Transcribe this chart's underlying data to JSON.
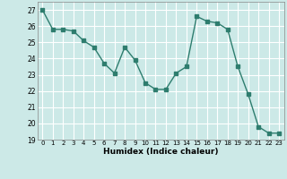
{
  "x": [
    0,
    1,
    2,
    3,
    4,
    5,
    6,
    7,
    8,
    9,
    10,
    11,
    12,
    13,
    14,
    15,
    16,
    17,
    18,
    19,
    20,
    21,
    22,
    23
  ],
  "y": [
    27,
    25.8,
    25.8,
    25.7,
    25.1,
    24.7,
    23.7,
    23.1,
    24.7,
    23.9,
    22.5,
    22.1,
    22.1,
    23.1,
    23.5,
    26.6,
    26.3,
    26.2,
    25.8,
    23.5,
    21.8,
    19.8,
    19.4,
    19.4
  ],
  "xlabel": "Humidex (Indice chaleur)",
  "ylim": [
    19,
    27.5
  ],
  "xlim": [
    -0.5,
    23.5
  ],
  "yticks": [
    19,
    20,
    21,
    22,
    23,
    24,
    25,
    26,
    27
  ],
  "xticks": [
    0,
    1,
    2,
    3,
    4,
    5,
    6,
    7,
    8,
    9,
    10,
    11,
    12,
    13,
    14,
    15,
    16,
    17,
    18,
    19,
    20,
    21,
    22,
    23
  ],
  "line_color": "#2e7d6e",
  "marker": "s",
  "marker_size": 2.5,
  "bg_color": "#cce9e7",
  "grid_color": "#ffffff",
  "line_width": 1.0
}
